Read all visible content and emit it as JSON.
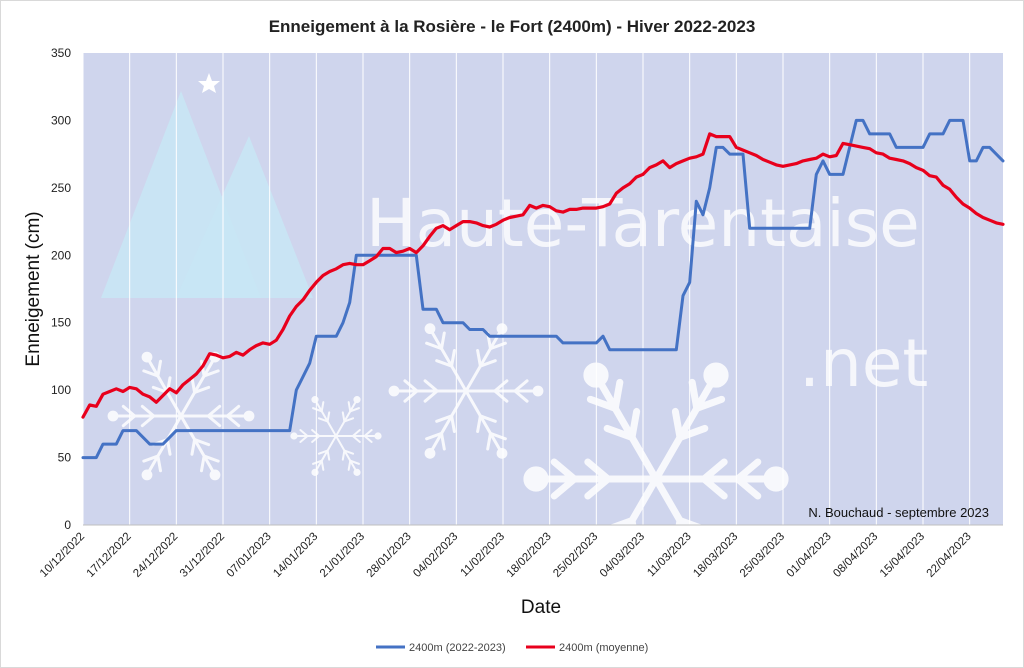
{
  "chart_data": {
    "type": "line",
    "title": "Enneigement à la Rosière - le Fort (2400m) - Hiver 2022-2023",
    "xlabel": "Date",
    "ylabel": "Enneigement (cm)",
    "ylim": [
      0,
      350
    ],
    "yticks": [
      0,
      50,
      100,
      150,
      200,
      250,
      300,
      350
    ],
    "x_start": "2022-12-10",
    "x_end": "2023-04-27",
    "xtick_labels": [
      "10/12/2022",
      "17/12/2022",
      "24/12/2022",
      "31/12/2022",
      "07/01/2023",
      "14/01/2023",
      "21/01/2023",
      "28/01/2023",
      "04/02/2023",
      "11/02/2023",
      "18/02/2023",
      "25/02/2023",
      "04/03/2023",
      "11/03/2023",
      "18/03/2023",
      "25/03/2023",
      "01/04/2023",
      "08/04/2023",
      "15/04/2023",
      "22/04/2023"
    ],
    "grid": "vertical",
    "legend_position": "bottom",
    "annotation": "N. Bouchaud - septembre 2023",
    "watermark": [
      "Haute-Tarentaise",
      ".net"
    ],
    "series": [
      {
        "name": "2400m (2022-2023)",
        "color": "#4472C4",
        "points": [
          [
            "2022-12-10",
            50
          ],
          [
            "2022-12-12",
            50
          ],
          [
            "2022-12-13",
            60
          ],
          [
            "2022-12-15",
            60
          ],
          [
            "2022-12-16",
            70
          ],
          [
            "2022-12-18",
            70
          ],
          [
            "2022-12-19",
            65
          ],
          [
            "2022-12-20",
            60
          ],
          [
            "2022-12-22",
            60
          ],
          [
            "2022-12-23",
            65
          ],
          [
            "2022-12-24",
            70
          ],
          [
            "2022-12-30",
            70
          ],
          [
            "2023-01-07",
            70
          ],
          [
            "2023-01-10",
            70
          ],
          [
            "2023-01-11",
            100
          ],
          [
            "2023-01-12",
            110
          ],
          [
            "2023-01-13",
            120
          ],
          [
            "2023-01-14",
            140
          ],
          [
            "2023-01-17",
            140
          ],
          [
            "2023-01-18",
            150
          ],
          [
            "2023-01-19",
            165
          ],
          [
            "2023-01-20",
            200
          ],
          [
            "2023-01-28",
            200
          ],
          [
            "2023-01-29",
            200
          ],
          [
            "2023-01-30",
            160
          ],
          [
            "2023-02-01",
            160
          ],
          [
            "2023-02-02",
            150
          ],
          [
            "2023-02-05",
            150
          ],
          [
            "2023-02-06",
            145
          ],
          [
            "2023-02-08",
            145
          ],
          [
            "2023-02-09",
            140
          ],
          [
            "2023-02-17",
            140
          ],
          [
            "2023-02-18",
            140
          ],
          [
            "2023-02-19",
            140
          ],
          [
            "2023-02-20",
            135
          ],
          [
            "2023-02-25",
            135
          ],
          [
            "2023-02-26",
            140
          ],
          [
            "2023-02-27",
            130
          ],
          [
            "2023-03-08",
            130
          ],
          [
            "2023-03-09",
            130
          ],
          [
            "2023-03-10",
            170
          ],
          [
            "2023-03-11",
            180
          ],
          [
            "2023-03-12",
            240
          ],
          [
            "2023-03-13",
            230
          ],
          [
            "2023-03-14",
            250
          ],
          [
            "2023-03-15",
            280
          ],
          [
            "2023-03-16",
            280
          ],
          [
            "2023-03-17",
            275
          ],
          [
            "2023-03-19",
            275
          ],
          [
            "2023-03-20",
            220
          ],
          [
            "2023-03-29",
            220
          ],
          [
            "2023-03-30",
            260
          ],
          [
            "2023-03-31",
            270
          ],
          [
            "2023-04-01",
            260
          ],
          [
            "2023-04-03",
            260
          ],
          [
            "2023-04-05",
            300
          ],
          [
            "2023-04-06",
            300
          ],
          [
            "2023-04-07",
            290
          ],
          [
            "2023-04-10",
            290
          ],
          [
            "2023-04-11",
            280
          ],
          [
            "2023-04-15",
            280
          ],
          [
            "2023-04-16",
            290
          ],
          [
            "2023-04-18",
            290
          ],
          [
            "2023-04-19",
            300
          ],
          [
            "2023-04-21",
            300
          ],
          [
            "2023-04-22",
            270
          ],
          [
            "2023-04-23",
            270
          ],
          [
            "2023-04-24",
            280
          ],
          [
            "2023-04-25",
            280
          ],
          [
            "2023-04-27",
            270
          ]
        ]
      },
      {
        "name": "2400m (moyenne)",
        "color": "#E8001C",
        "points": [
          [
            "2022-12-10",
            80
          ],
          [
            "2022-12-11",
            89
          ],
          [
            "2022-12-12",
            88
          ],
          [
            "2022-12-13",
            97
          ],
          [
            "2022-12-14",
            99
          ],
          [
            "2022-12-15",
            101
          ],
          [
            "2022-12-16",
            99
          ],
          [
            "2022-12-17",
            102
          ],
          [
            "2022-12-18",
            101
          ],
          [
            "2022-12-19",
            97
          ],
          [
            "2022-12-20",
            95
          ],
          [
            "2022-12-21",
            91
          ],
          [
            "2022-12-22",
            96
          ],
          [
            "2022-12-23",
            101
          ],
          [
            "2022-12-24",
            98
          ],
          [
            "2022-12-25",
            104
          ],
          [
            "2022-12-26",
            108
          ],
          [
            "2022-12-27",
            112
          ],
          [
            "2022-12-28",
            118
          ],
          [
            "2022-12-29",
            127
          ],
          [
            "2022-12-30",
            126
          ],
          [
            "2022-12-31",
            124
          ],
          [
            "2023-01-01",
            125
          ],
          [
            "2023-01-02",
            128
          ],
          [
            "2023-01-03",
            126
          ],
          [
            "2023-01-04",
            130
          ],
          [
            "2023-01-05",
            133
          ],
          [
            "2023-01-06",
            135
          ],
          [
            "2023-01-07",
            134
          ],
          [
            "2023-01-08",
            137
          ],
          [
            "2023-01-09",
            145
          ],
          [
            "2023-01-10",
            155
          ],
          [
            "2023-01-11",
            162
          ],
          [
            "2023-01-12",
            167
          ],
          [
            "2023-01-13",
            174
          ],
          [
            "2023-01-14",
            180
          ],
          [
            "2023-01-15",
            185
          ],
          [
            "2023-01-16",
            188
          ],
          [
            "2023-01-17",
            190
          ],
          [
            "2023-01-18",
            193
          ],
          [
            "2023-01-19",
            194
          ],
          [
            "2023-01-20",
            193
          ],
          [
            "2023-01-21",
            193
          ],
          [
            "2023-01-22",
            196
          ],
          [
            "2023-01-23",
            199
          ],
          [
            "2023-01-24",
            205
          ],
          [
            "2023-01-25",
            205
          ],
          [
            "2023-01-26",
            202
          ],
          [
            "2023-01-27",
            203
          ],
          [
            "2023-01-28",
            205
          ],
          [
            "2023-01-29",
            202
          ],
          [
            "2023-01-30",
            207
          ],
          [
            "2023-01-31",
            214
          ],
          [
            "2023-02-01",
            220
          ],
          [
            "2023-02-02",
            222
          ],
          [
            "2023-02-03",
            219
          ],
          [
            "2023-02-04",
            222
          ],
          [
            "2023-02-05",
            225
          ],
          [
            "2023-02-06",
            225
          ],
          [
            "2023-02-07",
            224
          ],
          [
            "2023-02-08",
            222
          ],
          [
            "2023-02-09",
            221
          ],
          [
            "2023-02-10",
            223
          ],
          [
            "2023-02-11",
            226
          ],
          [
            "2023-02-12",
            228
          ],
          [
            "2023-02-13",
            229
          ],
          [
            "2023-02-14",
            230
          ],
          [
            "2023-02-15",
            237
          ],
          [
            "2023-02-16",
            235
          ],
          [
            "2023-02-17",
            237
          ],
          [
            "2023-02-18",
            236
          ],
          [
            "2023-02-19",
            233
          ],
          [
            "2023-02-20",
            232
          ],
          [
            "2023-02-21",
            234
          ],
          [
            "2023-02-22",
            234
          ],
          [
            "2023-02-23",
            235
          ],
          [
            "2023-02-24",
            235
          ],
          [
            "2023-02-25",
            235
          ],
          [
            "2023-02-26",
            236
          ],
          [
            "2023-02-27",
            238
          ],
          [
            "2023-02-28",
            246
          ],
          [
            "2023-03-01",
            250
          ],
          [
            "2023-03-02",
            253
          ],
          [
            "2023-03-03",
            258
          ],
          [
            "2023-03-04",
            260
          ],
          [
            "2023-03-05",
            265
          ],
          [
            "2023-03-06",
            267
          ],
          [
            "2023-03-07",
            270
          ],
          [
            "2023-03-08",
            265
          ],
          [
            "2023-03-09",
            268
          ],
          [
            "2023-03-10",
            270
          ],
          [
            "2023-03-11",
            272
          ],
          [
            "2023-03-12",
            273
          ],
          [
            "2023-03-13",
            275
          ],
          [
            "2023-03-14",
            290
          ],
          [
            "2023-03-15",
            288
          ],
          [
            "2023-03-16",
            288
          ],
          [
            "2023-03-17",
            288
          ],
          [
            "2023-03-18",
            280
          ],
          [
            "2023-03-19",
            278
          ],
          [
            "2023-03-20",
            276
          ],
          [
            "2023-03-21",
            274
          ],
          [
            "2023-03-22",
            271
          ],
          [
            "2023-03-23",
            269
          ],
          [
            "2023-03-24",
            267
          ],
          [
            "2023-03-25",
            266
          ],
          [
            "2023-03-26",
            267
          ],
          [
            "2023-03-27",
            268
          ],
          [
            "2023-03-28",
            270
          ],
          [
            "2023-03-29",
            271
          ],
          [
            "2023-03-30",
            272
          ],
          [
            "2023-03-31",
            275
          ],
          [
            "2023-04-01",
            273
          ],
          [
            "2023-04-02",
            274
          ],
          [
            "2023-04-03",
            283
          ],
          [
            "2023-04-04",
            282
          ],
          [
            "2023-04-05",
            281
          ],
          [
            "2023-04-06",
            280
          ],
          [
            "2023-04-07",
            279
          ],
          [
            "2023-04-08",
            276
          ],
          [
            "2023-04-09",
            275
          ],
          [
            "2023-04-10",
            272
          ],
          [
            "2023-04-11",
            271
          ],
          [
            "2023-04-12",
            270
          ],
          [
            "2023-04-13",
            268
          ],
          [
            "2023-04-14",
            265
          ],
          [
            "2023-04-15",
            263
          ],
          [
            "2023-04-16",
            259
          ],
          [
            "2023-04-17",
            258
          ],
          [
            "2023-04-18",
            252
          ],
          [
            "2023-04-19",
            249
          ],
          [
            "2023-04-20",
            243
          ],
          [
            "2023-04-21",
            238
          ],
          [
            "2023-04-22",
            235
          ],
          [
            "2023-04-23",
            231
          ],
          [
            "2023-04-24",
            228
          ],
          [
            "2023-04-25",
            226
          ],
          [
            "2023-04-26",
            224
          ],
          [
            "2023-04-27",
            223
          ]
        ]
      }
    ]
  }
}
